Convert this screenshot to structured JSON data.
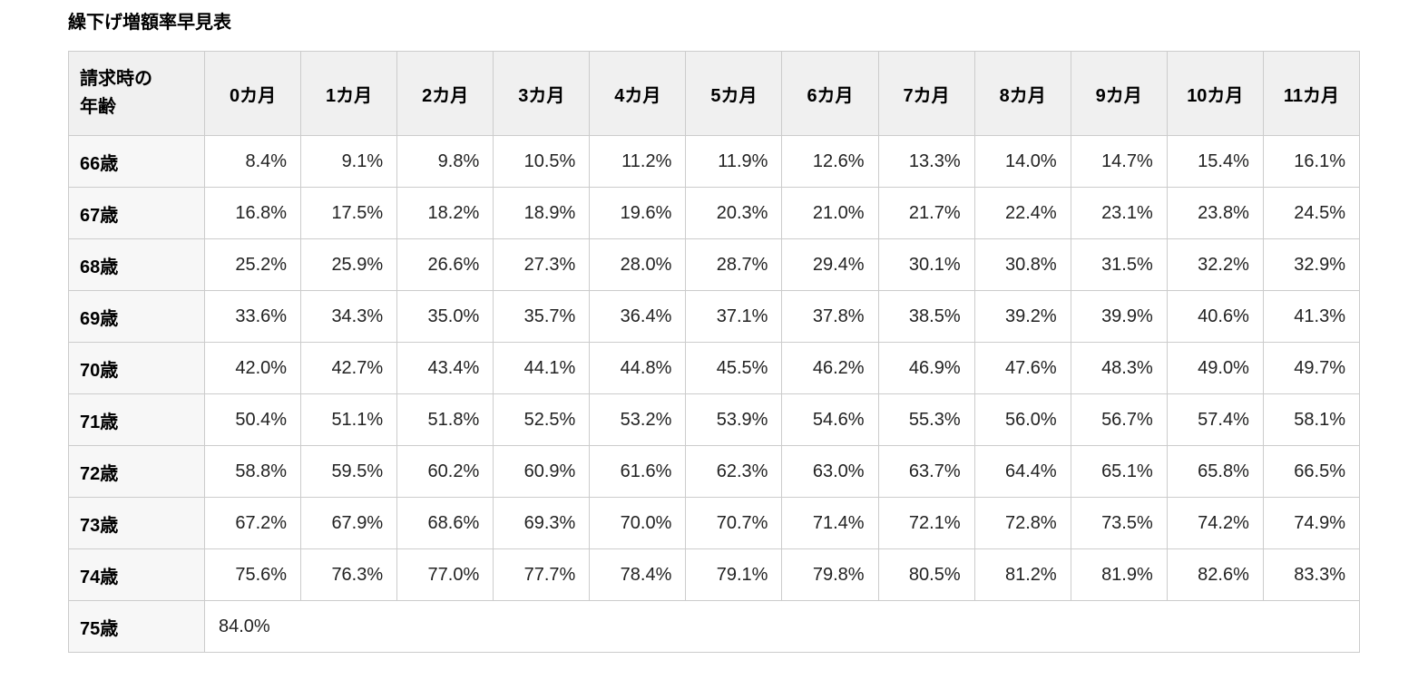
{
  "page": {
    "title": "繰下げ増額率早見表"
  },
  "table": {
    "corner_header": "請求時の年齢",
    "corner_header_lines": [
      "請求時の",
      "年齢"
    ],
    "month_headers": [
      "0カ月",
      "1カ月",
      "2カ月",
      "3カ月",
      "4カ月",
      "5カ月",
      "6カ月",
      "7カ月",
      "8カ月",
      "9カ月",
      "10カ月",
      "11カ月"
    ],
    "rows": [
      {
        "age": "66歳",
        "values": [
          "8.4%",
          "9.1%",
          "9.8%",
          "10.5%",
          "11.2%",
          "11.9%",
          "12.6%",
          "13.3%",
          "14.0%",
          "14.7%",
          "15.4%",
          "16.1%"
        ]
      },
      {
        "age": "67歳",
        "values": [
          "16.8%",
          "17.5%",
          "18.2%",
          "18.9%",
          "19.6%",
          "20.3%",
          "21.0%",
          "21.7%",
          "22.4%",
          "23.1%",
          "23.8%",
          "24.5%"
        ]
      },
      {
        "age": "68歳",
        "values": [
          "25.2%",
          "25.9%",
          "26.6%",
          "27.3%",
          "28.0%",
          "28.7%",
          "29.4%",
          "30.1%",
          "30.8%",
          "31.5%",
          "32.2%",
          "32.9%"
        ]
      },
      {
        "age": "69歳",
        "values": [
          "33.6%",
          "34.3%",
          "35.0%",
          "35.7%",
          "36.4%",
          "37.1%",
          "37.8%",
          "38.5%",
          "39.2%",
          "39.9%",
          "40.6%",
          "41.3%"
        ]
      },
      {
        "age": "70歳",
        "values": [
          "42.0%",
          "42.7%",
          "43.4%",
          "44.1%",
          "44.8%",
          "45.5%",
          "46.2%",
          "46.9%",
          "47.6%",
          "48.3%",
          "49.0%",
          "49.7%"
        ]
      },
      {
        "age": "71歳",
        "values": [
          "50.4%",
          "51.1%",
          "51.8%",
          "52.5%",
          "53.2%",
          "53.9%",
          "54.6%",
          "55.3%",
          "56.0%",
          "56.7%",
          "57.4%",
          "58.1%"
        ]
      },
      {
        "age": "72歳",
        "values": [
          "58.8%",
          "59.5%",
          "60.2%",
          "60.9%",
          "61.6%",
          "62.3%",
          "63.0%",
          "63.7%",
          "64.4%",
          "65.1%",
          "65.8%",
          "66.5%"
        ]
      },
      {
        "age": "73歳",
        "values": [
          "67.2%",
          "67.9%",
          "68.6%",
          "69.3%",
          "70.0%",
          "70.7%",
          "71.4%",
          "72.1%",
          "72.8%",
          "73.5%",
          "74.2%",
          "74.9%"
        ]
      },
      {
        "age": "74歳",
        "values": [
          "75.6%",
          "76.3%",
          "77.0%",
          "77.7%",
          "78.4%",
          "79.1%",
          "79.8%",
          "80.5%",
          "81.2%",
          "81.9%",
          "82.6%",
          "83.3%"
        ]
      },
      {
        "age": "75歳",
        "values": [
          "84.0%"
        ]
      }
    ]
  },
  "colors": {
    "header_bg": "#f0f0f0",
    "age_col_bg": "#f7f7f7",
    "cell_bg": "#ffffff",
    "border": "#cccccc",
    "text": "#222222",
    "heading_text": "#000000"
  }
}
